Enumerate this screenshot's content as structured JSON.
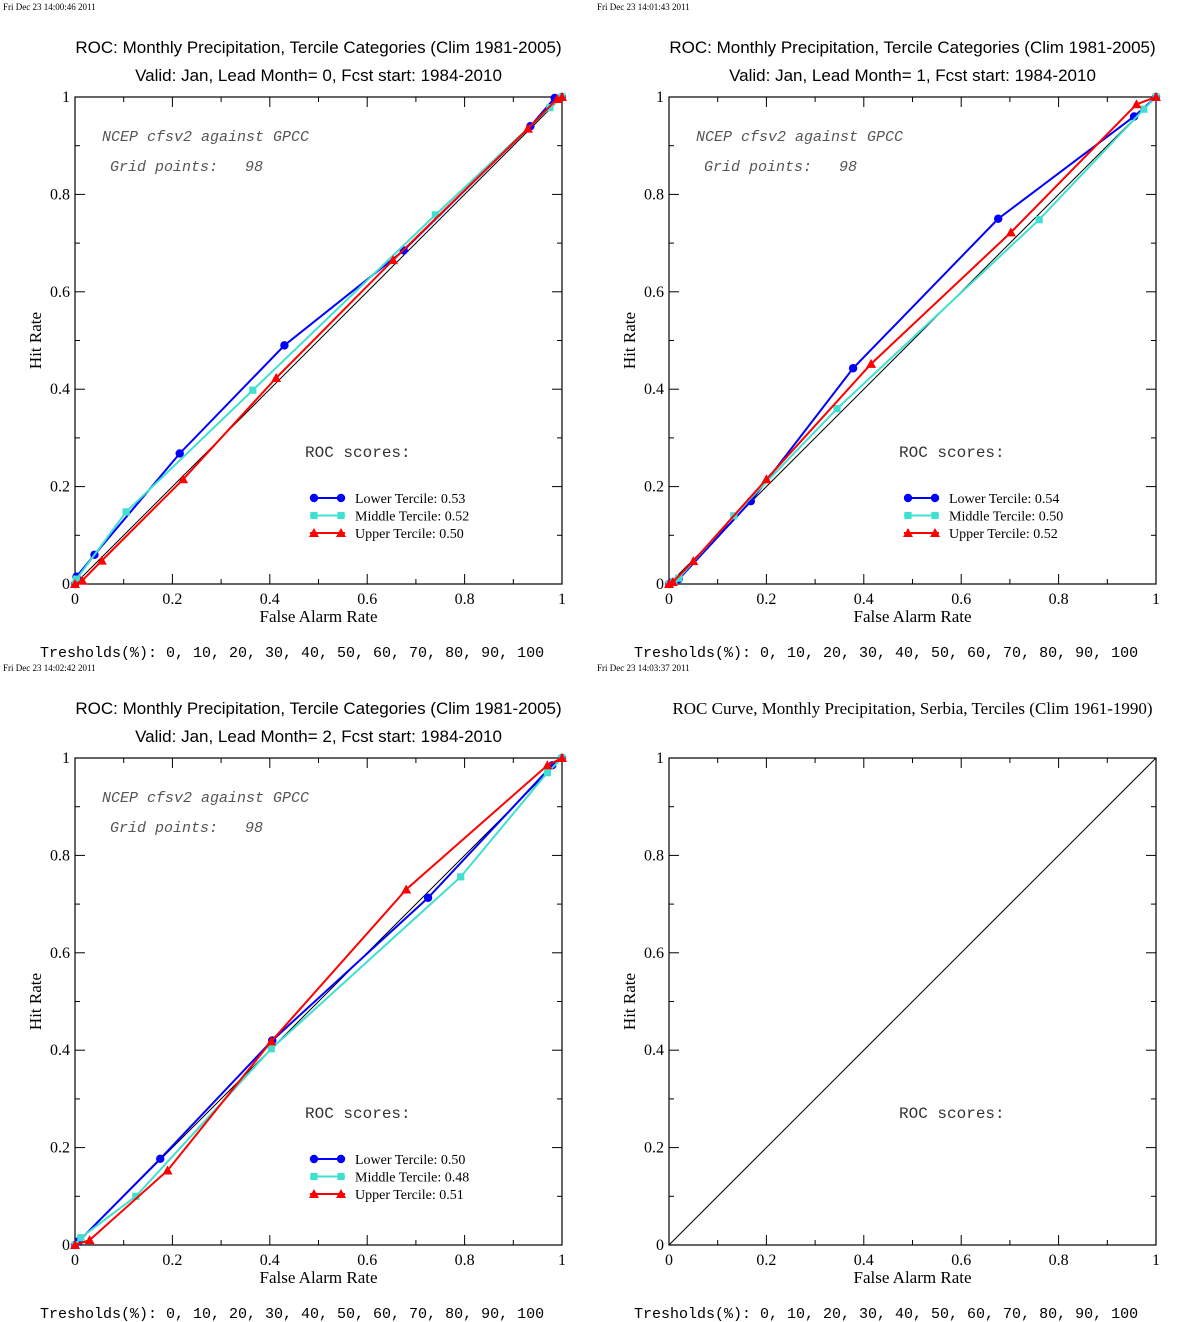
{
  "chart_data": [
    {
      "type": "line",
      "timestamp": "Fri Dec 23 14:00:46 2011",
      "title": [
        "ROC: Monthly Precipitation, Tercile Categories (Clim 1981-2005)",
        "Valid: Jan, Lead Month= 0, Fcst start: 1984-2010"
      ],
      "title_font": "sans",
      "xlabel": "False Alarm Rate",
      "ylabel": "Hit Rate",
      "xlim": [
        0,
        1
      ],
      "ylim": [
        0,
        1
      ],
      "xticks": [
        "0",
        "0.2",
        "0.4",
        "0.6",
        "0.8",
        "1"
      ],
      "yticks": [
        "0",
        "0.2",
        "0.4",
        "0.6",
        "0.8",
        "1"
      ],
      "grid": false,
      "diagonal": true,
      "annotations": [
        "NCEP cfsv2 against GPCC",
        "Grid points:   98"
      ],
      "scores_heading": "ROC scores:",
      "legend_position": "bottom-right",
      "thresholds": "Tresholds(%): 0, 10, 20, 30, 40, 50, 60, 70, 80, 90, 100",
      "series": [
        {
          "name": "Lower Tercile: 0.53",
          "color": "#0000ff",
          "marker": "circle",
          "x": [
            0,
            0.003,
            0.04,
            0.215,
            0.43,
            0.675,
            0.935,
            0.985,
            1
          ],
          "y": [
            0,
            0.015,
            0.06,
            0.268,
            0.49,
            0.685,
            0.94,
            0.998,
            1
          ]
        },
        {
          "name": "Middle Tercile: 0.52",
          "color": "#40e0d0",
          "marker": "square",
          "x": [
            0,
            0.003,
            0.105,
            0.365,
            0.74,
            0.975,
            1
          ],
          "y": [
            0,
            0.01,
            0.148,
            0.398,
            0.758,
            0.978,
            1
          ]
        },
        {
          "name": "Upper Tercile: 0.50",
          "color": "#ff0000",
          "marker": "triangle",
          "x": [
            0,
            0.015,
            0.055,
            0.222,
            0.413,
            0.653,
            0.93,
            0.99,
            1
          ],
          "y": [
            0,
            0.007,
            0.048,
            0.215,
            0.423,
            0.665,
            0.935,
            0.996,
            1
          ]
        }
      ]
    },
    {
      "type": "line",
      "timestamp": "Fri Dec 23 14:01:43 2011",
      "title": [
        "ROC: Monthly Precipitation, Tercile Categories (Clim 1981-2005)",
        "Valid: Jan, Lead Month= 1, Fcst start: 1984-2010"
      ],
      "title_font": "sans",
      "xlabel": "False Alarm Rate",
      "ylabel": "Hit Rate",
      "xlim": [
        0,
        1
      ],
      "ylim": [
        0,
        1
      ],
      "xticks": [
        "0",
        "0.2",
        "0.4",
        "0.6",
        "0.8",
        "1"
      ],
      "yticks": [
        "0",
        "0.2",
        "0.4",
        "0.6",
        "0.8",
        "1"
      ],
      "grid": false,
      "diagonal": true,
      "annotations": [
        "NCEP cfsv2 against GPCC",
        "Grid points:   98"
      ],
      "scores_heading": "ROC scores:",
      "legend_position": "bottom-right",
      "thresholds": "Tresholds(%): 0, 10, 20, 30, 40, 50, 60, 70, 80, 90, 100",
      "series": [
        {
          "name": "Lower Tercile: 0.54",
          "color": "#0000ff",
          "marker": "circle",
          "x": [
            0,
            0.005,
            0.02,
            0.168,
            0.378,
            0.676,
            0.955,
            1
          ],
          "y": [
            0,
            0.003,
            0.01,
            0.17,
            0.443,
            0.75,
            0.96,
            1
          ]
        },
        {
          "name": "Middle Tercile: 0.50",
          "color": "#40e0d0",
          "marker": "square",
          "x": [
            0,
            0.01,
            0.02,
            0.133,
            0.345,
            0.76,
            0.975,
            1
          ],
          "y": [
            0,
            0.005,
            0.012,
            0.14,
            0.36,
            0.748,
            0.975,
            1
          ]
        },
        {
          "name": "Upper Tercile: 0.52",
          "color": "#ff0000",
          "marker": "triangle",
          "x": [
            0,
            0.008,
            0.05,
            0.2,
            0.415,
            0.702,
            0.96,
            1
          ],
          "y": [
            0,
            0.004,
            0.047,
            0.215,
            0.452,
            0.722,
            0.985,
            1
          ]
        }
      ]
    },
    {
      "type": "line",
      "timestamp": "Fri Dec 23 14:02:42 2011",
      "title": [
        "ROC: Monthly Precipitation, Tercile Categories (Clim 1981-2005)",
        "Valid: Jan, Lead Month= 2, Fcst start: 1984-2010"
      ],
      "title_font": "sans",
      "xlabel": "False Alarm Rate",
      "ylabel": "Hit Rate",
      "xlim": [
        0,
        1
      ],
      "ylim": [
        0,
        1
      ],
      "xticks": [
        "0",
        "0.2",
        "0.4",
        "0.6",
        "0.8",
        "1"
      ],
      "yticks": [
        "0",
        "0.2",
        "0.4",
        "0.6",
        "0.8",
        "1"
      ],
      "grid": false,
      "diagonal": true,
      "annotations": [
        "NCEP cfsv2 against GPCC",
        "Grid points:   98"
      ],
      "scores_heading": "ROC scores:",
      "legend_position": "bottom-right",
      "thresholds": "Tresholds(%): 0, 10, 20, 30, 40, 50, 60, 70, 80, 90, 100",
      "series": [
        {
          "name": "Lower Tercile: 0.50",
          "color": "#0000ff",
          "marker": "circle",
          "x": [
            0,
            0.008,
            0.175,
            0.405,
            0.725,
            0.98,
            1
          ],
          "y": [
            0,
            0.008,
            0.177,
            0.42,
            0.713,
            0.985,
            1
          ]
        },
        {
          "name": "Middle Tercile: 0.48",
          "color": "#40e0d0",
          "marker": "square",
          "x": [
            0,
            0.012,
            0.125,
            0.403,
            0.792,
            0.97,
            1
          ],
          "y": [
            0,
            0.015,
            0.1,
            0.403,
            0.756,
            0.97,
            1
          ]
        },
        {
          "name": "Upper Tercile: 0.51",
          "color": "#ff0000",
          "marker": "triangle",
          "x": [
            0,
            0.03,
            0.19,
            0.403,
            0.68,
            0.97,
            1
          ],
          "y": [
            0,
            0.01,
            0.153,
            0.418,
            0.73,
            0.985,
            1
          ]
        }
      ]
    },
    {
      "type": "line",
      "timestamp": "Fri Dec 23 14:03:37 2011",
      "title": [
        "ROC Curve, Monthly Precipitation, Serbia, Terciles (Clim 1961-1990)"
      ],
      "title_font": "serif",
      "xlabel": "False Alarm Rate",
      "ylabel": "Hit Rate",
      "xlim": [
        0,
        1
      ],
      "ylim": [
        0,
        1
      ],
      "xticks": [
        "0",
        "0.2",
        "0.4",
        "0.6",
        "0.8",
        "1"
      ],
      "yticks": [
        "0",
        "0.2",
        "0.4",
        "0.6",
        "0.8",
        "1"
      ],
      "grid": false,
      "diagonal": true,
      "annotations": [],
      "scores_heading": "ROC scores:",
      "legend_position": "bottom-right",
      "thresholds": "Tresholds(%): 0, 10, 20, 30, 40, 50, 60, 70, 80, 90, 100",
      "series": []
    }
  ]
}
